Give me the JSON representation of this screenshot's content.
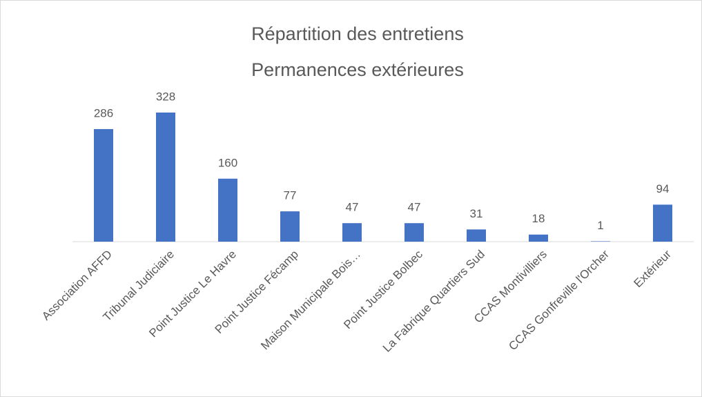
{
  "chart_data": {
    "type": "bar",
    "title": [
      "Répartition des entretiens",
      "Permanences extérieures"
    ],
    "categories": [
      "Association AFFD",
      "Tribunal Judiciaire",
      "Point Justice Le Havre",
      "Point Justice Fécamp",
      "Maison Municipale Bois…",
      "Point Justice Bolbec",
      "La Fabrique Quartiers Sud",
      "CCAS Montivilliers",
      "CCAS Gonfreville l'Orcher",
      "Extérieur"
    ],
    "values": [
      286,
      328,
      160,
      77,
      47,
      47,
      31,
      18,
      1,
      94
    ],
    "color": "#4472c4"
  }
}
